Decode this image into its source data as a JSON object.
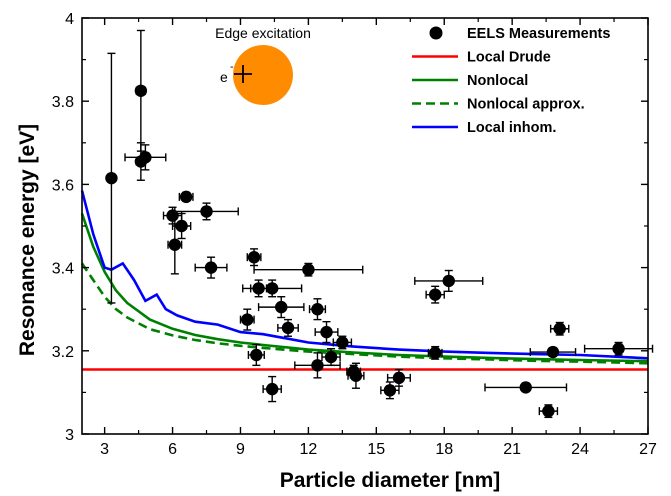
{
  "chart_data": {
    "type": "scatter",
    "xlabel": "Particle diameter [nm]",
    "ylabel": "Resonance energy [eV]",
    "xlim": [
      2,
      27
    ],
    "ylim": [
      3.0,
      4.0
    ],
    "xticks": [
      "3",
      "6",
      "9",
      "12",
      "15",
      "18",
      "21",
      "24",
      "27"
    ],
    "yticks": [
      "3",
      "3.2",
      "3.4",
      "3.6",
      "3.8",
      "4"
    ],
    "inset": {
      "title": "Edge excitation",
      "electron_label": "e",
      "electron_superscript": "-",
      "particle_color": "#ff8c00",
      "position": "top-left"
    },
    "legend": {
      "position": "top-right",
      "entries": [
        {
          "label": "EELS Measurements",
          "style": "dot",
          "color": "#000000"
        },
        {
          "label": "Local Drude",
          "style": "line",
          "color": "#ff0000"
        },
        {
          "label": "Nonlocal",
          "style": "line",
          "color": "#008000"
        },
        {
          "label": "Nonlocal approx.",
          "style": "dashed",
          "color": "#008000"
        },
        {
          "label": "Local inhom.",
          "style": "line",
          "color": "#0000ff"
        }
      ]
    },
    "series": [
      {
        "name": "EELS Measurements",
        "kind": "scatter",
        "color": "#000000",
        "points": [
          {
            "x": 3.3,
            "y": 3.615,
            "xerr": 0,
            "yerr": 0.3
          },
          {
            "x": 4.6,
            "y": 3.825,
            "xerr": 0.2,
            "yerr": 0.145
          },
          {
            "x": 4.8,
            "y": 3.665,
            "xerr": 0.9,
            "yerr": 0.03
          },
          {
            "x": 4.6,
            "y": 3.655,
            "xerr": 0.2,
            "yerr": 0.045
          },
          {
            "x": 6.6,
            "y": 3.57,
            "xerr": 0.3,
            "yerr": 0.01
          },
          {
            "x": 7.5,
            "y": 3.535,
            "xerr": 1.4,
            "yerr": 0.02
          },
          {
            "x": 6.0,
            "y": 3.525,
            "xerr": 0.4,
            "yerr": 0.02
          },
          {
            "x": 6.4,
            "y": 3.5,
            "xerr": 0.4,
            "yerr": 0.03
          },
          {
            "x": 6.1,
            "y": 3.455,
            "xerr": 0.3,
            "yerr": 0.07
          },
          {
            "x": 9.6,
            "y": 3.425,
            "xerr": 0.3,
            "yerr": 0.02
          },
          {
            "x": 7.7,
            "y": 3.4,
            "xerr": 0.7,
            "yerr": 0.025
          },
          {
            "x": 12.0,
            "y": 3.395,
            "xerr": 2.4,
            "yerr": 0.015
          },
          {
            "x": 18.2,
            "y": 3.368,
            "xerr": 1.5,
            "yerr": 0.025
          },
          {
            "x": 17.6,
            "y": 3.335,
            "xerr": 0.4,
            "yerr": 0.02
          },
          {
            "x": 9.8,
            "y": 3.35,
            "xerr": 0.35,
            "yerr": 0.02
          },
          {
            "x": 10.4,
            "y": 3.35,
            "xerr": 1.3,
            "yerr": 0.02
          },
          {
            "x": 10.8,
            "y": 3.305,
            "xerr": 1.0,
            "yerr": 0.025
          },
          {
            "x": 12.4,
            "y": 3.3,
            "xerr": 0.35,
            "yerr": 0.025
          },
          {
            "x": 9.3,
            "y": 3.275,
            "xerr": 0.3,
            "yerr": 0.025
          },
          {
            "x": 11.1,
            "y": 3.255,
            "xerr": 0.45,
            "yerr": 0.02
          },
          {
            "x": 12.8,
            "y": 3.245,
            "xerr": 0.5,
            "yerr": 0.025
          },
          {
            "x": 13.5,
            "y": 3.22,
            "xerr": 0.4,
            "yerr": 0.015
          },
          {
            "x": 23.1,
            "y": 3.253,
            "xerr": 0.4,
            "yerr": 0.015
          },
          {
            "x": 25.7,
            "y": 3.205,
            "xerr": 1.5,
            "yerr": 0.015
          },
          {
            "x": 22.8,
            "y": 3.197,
            "xerr": 1.0,
            "yerr": 0.01
          },
          {
            "x": 17.6,
            "y": 3.195,
            "xerr": 0.3,
            "yerr": 0.015
          },
          {
            "x": 9.7,
            "y": 3.19,
            "xerr": 0.35,
            "yerr": 0.025
          },
          {
            "x": 13.0,
            "y": 3.185,
            "xerr": 0.4,
            "yerr": 0.02
          },
          {
            "x": 12.4,
            "y": 3.165,
            "xerr": 1.0,
            "yerr": 0.03
          },
          {
            "x": 14.0,
            "y": 3.15,
            "xerr": 0.3,
            "yerr": 0.015
          },
          {
            "x": 14.1,
            "y": 3.14,
            "xerr": 0.35,
            "yerr": 0.03
          },
          {
            "x": 16.0,
            "y": 3.135,
            "xerr": 0.5,
            "yerr": 0.02
          },
          {
            "x": 21.6,
            "y": 3.112,
            "xerr": 1.8,
            "yerr": 0.01
          },
          {
            "x": 10.4,
            "y": 3.108,
            "xerr": 0.4,
            "yerr": 0.03
          },
          {
            "x": 15.6,
            "y": 3.105,
            "xerr": 0.4,
            "yerr": 0.02
          },
          {
            "x": 22.6,
            "y": 3.055,
            "xerr": 0.4,
            "yerr": 0.015
          }
        ]
      },
      {
        "name": "Local Drude",
        "kind": "line",
        "color": "#ff0000",
        "x": [
          2,
          27
        ],
        "y": [
          3.155,
          3.155
        ]
      },
      {
        "name": "Nonlocal",
        "kind": "line",
        "color": "#008000",
        "x": [
          2.0,
          2.5,
          3.0,
          3.5,
          4.0,
          5.0,
          6.0,
          7.0,
          8.0,
          9.0,
          10.0,
          12.0,
          14.0,
          16.0,
          18.0,
          20.0,
          22.0,
          24.0,
          27.0
        ],
        "y": [
          3.53,
          3.45,
          3.39,
          3.345,
          3.315,
          3.275,
          3.253,
          3.238,
          3.228,
          3.22,
          3.214,
          3.203,
          3.196,
          3.19,
          3.186,
          3.183,
          3.18,
          3.178,
          3.175
        ]
      },
      {
        "name": "Nonlocal approx.",
        "kind": "dashed",
        "color": "#008000",
        "x": [
          2.0,
          2.5,
          3.0,
          3.5,
          4.0,
          5.0,
          6.0,
          7.0,
          8.0,
          9.0,
          10.0,
          12.0,
          14.0,
          16.0,
          18.0,
          20.0,
          22.0,
          24.0,
          27.0
        ],
        "y": [
          3.41,
          3.37,
          3.33,
          3.3,
          3.28,
          3.252,
          3.237,
          3.226,
          3.218,
          3.212,
          3.207,
          3.198,
          3.192,
          3.186,
          3.182,
          3.179,
          3.176,
          3.174,
          3.17
        ]
      },
      {
        "name": "Local inhom.",
        "kind": "line",
        "color": "#0000ff",
        "x": [
          2.0,
          2.5,
          3.0,
          3.3,
          3.8,
          4.3,
          4.8,
          5.3,
          5.7,
          6.2,
          7.0,
          8.0,
          9.0,
          10.0,
          11.0,
          12.0,
          13.0,
          14.0,
          16.0,
          18.0,
          20.0,
          22.0,
          24.0,
          27.0
        ],
        "y": [
          3.585,
          3.48,
          3.4,
          3.395,
          3.41,
          3.37,
          3.32,
          3.335,
          3.3,
          3.285,
          3.27,
          3.263,
          3.245,
          3.24,
          3.23,
          3.22,
          3.215,
          3.21,
          3.203,
          3.198,
          3.195,
          3.192,
          3.19,
          3.182
        ]
      }
    ]
  }
}
